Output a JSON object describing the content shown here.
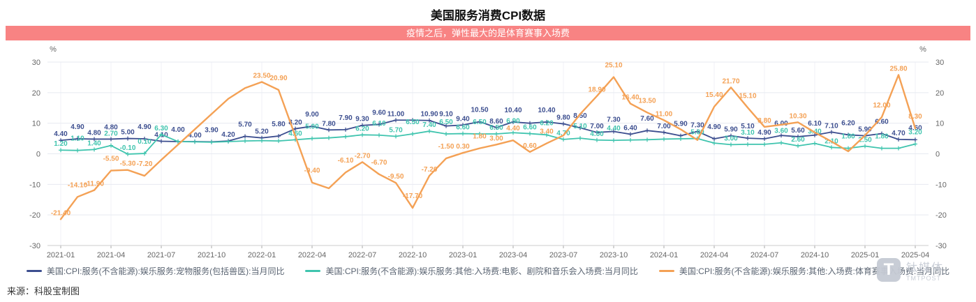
{
  "title": "美国服务消费CPI数据",
  "banner": "疫情之后，弹性最大的是体育赛事入场费",
  "source": "来源：科股宝制图",
  "logo": {
    "glyph": "T",
    "cn": "钛媒体",
    "en": "TMTPOST"
  },
  "chart_data": {
    "type": "line",
    "x": [
      "2021-01",
      "2021-02",
      "2021-03",
      "2021-04",
      "2021-05",
      "2021-06",
      "2021-07",
      "2021-08",
      "2021-09",
      "2021-10",
      "2021-11",
      "2021-12",
      "2022-01",
      "2022-02",
      "2022-03",
      "2022-04",
      "2022-05",
      "2022-06",
      "2022-07",
      "2022-08",
      "2022-09",
      "2022-10",
      "2022-11",
      "2022-12",
      "2023-01",
      "2023-02",
      "2023-03",
      "2023-04",
      "2023-05",
      "2023-06",
      "2023-07",
      "2023-08",
      "2023-09",
      "2023-10",
      "2023-11",
      "2023-12",
      "2024-01",
      "2024-02",
      "2024-03",
      "2024-04",
      "2024-05",
      "2024-06",
      "2024-07",
      "2024-08",
      "2024-09",
      "2024-10",
      "2024-11",
      "2024-12",
      "2025-01",
      "2025-02",
      "2025-03",
      "2025-04"
    ],
    "x_ticks": [
      "2021-01",
      "2021-04",
      "2021-07",
      "2021-10",
      "2022-01",
      "2022-04",
      "2022-07",
      "2022-10",
      "2023-01",
      "2023-04",
      "2023-07",
      "2023-10",
      "2024-01",
      "2024-04",
      "2024-07",
      "2024-10",
      "2025-01",
      "2025-04"
    ],
    "y_ticks": [
      30,
      20,
      10,
      0,
      -10,
      -20,
      -30
    ],
    "ylim": [
      -30,
      30
    ],
    "y_unit": "%",
    "grid": true,
    "legend_position": "bottom",
    "series": [
      {
        "name": "美国:CPI:服务(不含能源):娱乐服务:宠物服务(包括兽医):当月同比",
        "color": "#3c4e8f",
        "values": [
          4.4,
          4.9,
          4.8,
          4.8,
          5.0,
          4.9,
          4.1,
          4.0,
          4.0,
          3.9,
          4.2,
          5.7,
          5.2,
          5.8,
          8.2,
          9.0,
          7.8,
          7.9,
          9.3,
          9.6,
          11.0,
          11.0,
          10.9,
          9.1,
          9.4,
          10.5,
          8.6,
          10.4,
          10.0,
          10.4,
          9.8,
          8.5,
          7.0,
          7.3,
          6.4,
          7.6,
          7.0,
          5.9,
          7.3,
          4.9,
          5.9,
          5.1,
          4.9,
          6.0,
          5.6,
          6.1,
          7.1,
          6.2,
          5.9,
          6.6,
          4.7,
          4.6
        ],
        "labels": [
          "4.40",
          "4.90",
          "4.80",
          "4.80",
          "5.00",
          "4.90",
          "4.10",
          "4.00",
          "4.00",
          "3.90",
          "4.20",
          "5.70",
          "5.20",
          "5.80",
          "8.20",
          "9.00",
          "7.80",
          "7.90",
          "9.30",
          "9.60",
          "11.00",
          "",
          "10.90",
          "9.10",
          "9.40",
          "10.50",
          "8.60",
          "10.40",
          "",
          "10.40",
          "9.80",
          "8.50",
          "7.00",
          "7.30",
          "6.40",
          "7.60",
          "7.00",
          "5.90",
          "7.30",
          "4.90",
          "5.90",
          "5.10",
          "4.90",
          "6.00",
          "5.60",
          "6.10",
          "7.10",
          "6.20",
          "5.90",
          "6.60",
          "4.70",
          "4.60"
        ]
      },
      {
        "name": "美国:CPI:服务(不含能源):娱乐服务:其他:入场费:电影、剧院和音乐会入场费:当月同比",
        "color": "#3fc4ae",
        "values": [
          1.2,
          1.1,
          1.4,
          2.7,
          -0.1,
          0.1,
          6.3,
          4.0,
          3.9,
          3.8,
          4.0,
          4.2,
          4.3,
          4.2,
          4.6,
          5.0,
          5.2,
          5.6,
          6.2,
          6.1,
          5.7,
          6.5,
          7.4,
          6.5,
          6.6,
          6.5,
          6.5,
          6.9,
          6.6,
          6.2,
          4.7,
          5.1,
          4.5,
          4.4,
          4.5,
          4.6,
          4.8,
          4.9,
          5.0,
          3.5,
          3.0,
          3.1,
          3.1,
          3.6,
          2.6,
          3.4,
          2.1,
          1.8,
          2.5,
          1.8,
          1.8,
          3.2
        ],
        "labels": [
          "1.20",
          "1.10",
          "1.40",
          "2.70",
          "-0.10",
          "0.10",
          "6.30",
          "",
          "",
          "",
          "",
          "",
          "",
          "",
          "4.60",
          "5.00",
          "",
          "",
          "6.20",
          "6.10",
          "5.70",
          "6.50",
          "7.40",
          "6.50",
          "6.60",
          "6.50",
          "6.50",
          "6.90",
          "6.60",
          "6.20",
          "4.70",
          "5.10",
          "4.50",
          "4.40",
          "",
          "",
          "",
          "",
          "5.00",
          "",
          "3.00",
          "3.10",
          "",
          "3.60",
          "2.60",
          "3.40",
          "2.10",
          "1.80",
          "2.50",
          "1.80",
          "",
          "3.20"
        ]
      },
      {
        "name": "美国:CPI:服务(不含能源):娱乐服务:其他:入场费:体育赛事入场费:当月同比",
        "color": "#f4a155",
        "values": [
          -21.4,
          -14.1,
          -11.9,
          -5.5,
          -5.3,
          -7.2,
          -2.0,
          3.0,
          8.0,
          13.0,
          18.0,
          21.5,
          23.5,
          20.9,
          5.8,
          -9.4,
          -11.3,
          -6.1,
          -2.7,
          -6.7,
          -9.5,
          -17.7,
          -7.2,
          -1.5,
          0.3,
          1.8,
          3.0,
          4.4,
          0.6,
          3.4,
          6.0,
          13.0,
          18.9,
          25.1,
          16.4,
          13.5,
          11.0,
          8.0,
          4.5,
          15.4,
          21.7,
          15.1,
          8.8,
          9.5,
          10.3,
          7.0,
          4.0,
          0.8,
          6.0,
          12.0,
          25.8,
          8.3
        ],
        "labels": [
          "-21.40",
          "-14.10",
          "-11.90",
          "-5.50",
          "-5.30",
          "-7.20",
          "",
          "",
          "",
          "",
          "",
          "",
          "23.50",
          "20.90",
          "",
          "-9.40",
          "",
          "-6.10",
          "-2.70",
          "-6.70",
          "-9.50",
          "-17.70",
          "-7.20",
          "-1.50",
          "0.30",
          "1.80",
          "3.00",
          "4.40",
          "0.60",
          "3.40",
          "",
          "",
          "18.90",
          "25.10",
          "16.40",
          "13.50",
          "11.00",
          "",
          "",
          "15.40",
          "21.70",
          "15.10",
          "8.80",
          "",
          "10.30",
          "",
          "",
          "",
          "",
          "12.00",
          "25.80",
          "8.30"
        ]
      }
    ]
  }
}
